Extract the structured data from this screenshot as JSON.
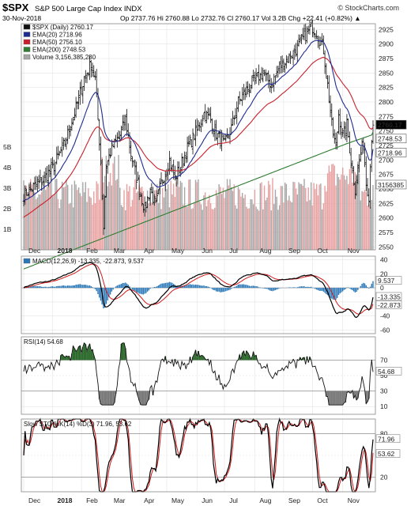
{
  "header": {
    "symbol": "$SPX",
    "name": "S&P 500 Large Cap Index INDX",
    "site": "© StockCharts.com",
    "date": "30-Nov-2018",
    "quote": "Op 2737.76  Hi 2760.88  Lo 2732.76  Cl 2760.17  Vol 3.2B  Chg +22.41 (+0.82%) ▲"
  },
  "colors": {
    "price_bar": "#111111",
    "ema20": "#1f2c8f",
    "ema50": "#c8202c",
    "ema200": "#2e7d32",
    "vol_up": "#a7a7a7",
    "vol_down": "#e8a0a0",
    "macd": "#000000",
    "signal": "#d11a1a",
    "hist": "#2a78b8",
    "rsi_fill": "#2e6b2e",
    "stoch_k": "#000000",
    "stoch_d": "#d11a1a",
    "grid": "#e3e3e3"
  },
  "panels": {
    "price": {
      "legend": [
        "$SPX (Daily) 2760.17",
        "EMA(20) 2718.96",
        "EMA(50) 2756.10",
        "EMA(200) 2748.53",
        "Volume 3,156,385,280"
      ],
      "y_ticks": [
        "2925",
        "2900",
        "2875",
        "2850",
        "2825",
        "2800",
        "2775",
        "2750",
        "2725",
        "2700",
        "2675",
        "2650",
        "2625",
        "2600",
        "2575",
        "2550"
      ],
      "vol_ticks": [
        "5B",
        "4B",
        "3B",
        "2B",
        "1B"
      ],
      "tags": [
        "2760.17",
        "2748.53",
        "2718.96",
        "3156385"
      ]
    },
    "macd": {
      "legend": "MACD(12,26,9) -13.335, -22.873, 9.537",
      "y_ticks": [
        "40",
        "20",
        "0",
        "-20",
        "-40",
        "-60"
      ],
      "tags": [
        "9.537",
        "-13.335",
        "-22.873"
      ]
    },
    "rsi": {
      "legend": "RSI(14) 54.68",
      "y_ticks": [
        "70",
        "50",
        "30",
        "10"
      ],
      "tags": [
        "54.68"
      ]
    },
    "stoch": {
      "legend": "Slow STO %K(14) %D(3) 71.96, 53.62",
      "y_ticks": [
        "80",
        "50",
        "20"
      ],
      "tags": [
        "71.96",
        "53.62"
      ]
    }
  },
  "x_labels": [
    "Dec",
    "2018",
    "Feb",
    "Mar",
    "Apr",
    "May",
    "Jun",
    "Jul",
    "Aug",
    "Sep",
    "Oct",
    "Nov"
  ],
  "chart_data": [
    {
      "type": "line",
      "title": "$SPX (Daily) 2760.17",
      "x": [
        "Dec",
        "2018",
        "Feb",
        "Mar",
        "Apr",
        "May",
        "Jun",
        "Jul",
        "Aug",
        "Sep",
        "Oct",
        "Nov",
        "Nov-30"
      ],
      "series": [
        {
          "name": "$SPX (Daily) 2760.17",
          "values": [
            2640,
            2700,
            2800,
            2690,
            2640,
            2660,
            2740,
            2720,
            2820,
            2905,
            2890,
            2720,
            2760
          ]
        },
        {
          "name": "EMA(20) 2718.96",
          "values": [
            2630,
            2660,
            2810,
            2720,
            2660,
            2660,
            2720,
            2730,
            2820,
            2880,
            2900,
            2700,
            2719
          ]
        },
        {
          "name": "EMA(50) 2756.10",
          "values": [
            2590,
            2620,
            2760,
            2740,
            2680,
            2670,
            2710,
            2720,
            2790,
            2860,
            2880,
            2760,
            2756
          ]
        },
        {
          "name": "EMA(200) 2748.53",
          "values": [
            2525,
            2545,
            2600,
            2620,
            2630,
            2645,
            2665,
            2685,
            2705,
            2725,
            2745,
            2745,
            2749
          ]
        }
      ],
      "ylim": [
        2545,
        2935
      ]
    },
    {
      "type": "bar",
      "title": "Volume 3,156,385,280",
      "x": [
        "Dec",
        "2018",
        "Feb",
        "Mar",
        "Apr",
        "May",
        "Jun",
        "Jul",
        "Aug",
        "Sep",
        "Oct",
        "Nov",
        "Nov-30"
      ],
      "values": [
        3.3,
        3.2,
        4.6,
        3.6,
        3.4,
        3.0,
        3.1,
        2.9,
        2.8,
        2.9,
        4.2,
        3.8,
        3.2
      ],
      "ylim": [
        0,
        6
      ]
    },
    {
      "type": "line",
      "title": "MACD(12,26,9) -13.335, -22.873, 9.537",
      "x": [
        "Dec",
        "2018",
        "Feb",
        "Mar",
        "Apr",
        "May",
        "Jun",
        "Jul",
        "Aug",
        "Sep",
        "Oct",
        "Nov",
        "Nov-30"
      ],
      "series": [
        {
          "name": "MACD",
          "values": [
            5,
            20,
            40,
            -18,
            -15,
            -8,
            15,
            -8,
            18,
            25,
            20,
            -45,
            -13.335
          ]
        },
        {
          "name": "Signal",
          "values": [
            3,
            15,
            35,
            -10,
            -18,
            -10,
            12,
            -4,
            15,
            22,
            22,
            -38,
            -22.873
          ]
        },
        {
          "name": "Histogram",
          "values": [
            2,
            5,
            5,
            -8,
            3,
            2,
            3,
            -4,
            3,
            3,
            -2,
            -7,
            9.537
          ]
        }
      ],
      "ylim": [
        -65,
        45
      ]
    },
    {
      "type": "line",
      "title": "RSI(14) 54.68",
      "x": [
        "Dec",
        "2018",
        "Feb",
        "Mar",
        "Apr",
        "May",
        "Jun",
        "Jul",
        "Aug",
        "Sep",
        "Oct",
        "Nov",
        "Nov-30"
      ],
      "series": [
        {
          "name": "RSI(14)",
          "values": [
            55,
            60,
            80,
            42,
            40,
            50,
            62,
            55,
            65,
            60,
            50,
            35,
            54.68
          ]
        }
      ],
      "ylim": [
        0,
        100
      ]
    },
    {
      "type": "line",
      "title": "Slow STO %K(14) %D(3) 71.96, 53.62",
      "x": [
        "Dec",
        "2018",
        "Feb",
        "Mar",
        "Apr",
        "May",
        "Jun",
        "Jul",
        "Aug",
        "Sep",
        "Oct",
        "Nov",
        "Nov-30"
      ],
      "series": [
        {
          "name": "%K(14)",
          "values": [
            60,
            85,
            90,
            15,
            40,
            80,
            85,
            20,
            85,
            90,
            15,
            25,
            71.96
          ]
        },
        {
          "name": "%D(3)",
          "values": [
            55,
            80,
            85,
            20,
            35,
            75,
            80,
            25,
            80,
            85,
            20,
            20,
            53.62
          ]
        }
      ],
      "ylim": [
        0,
        100
      ]
    }
  ]
}
